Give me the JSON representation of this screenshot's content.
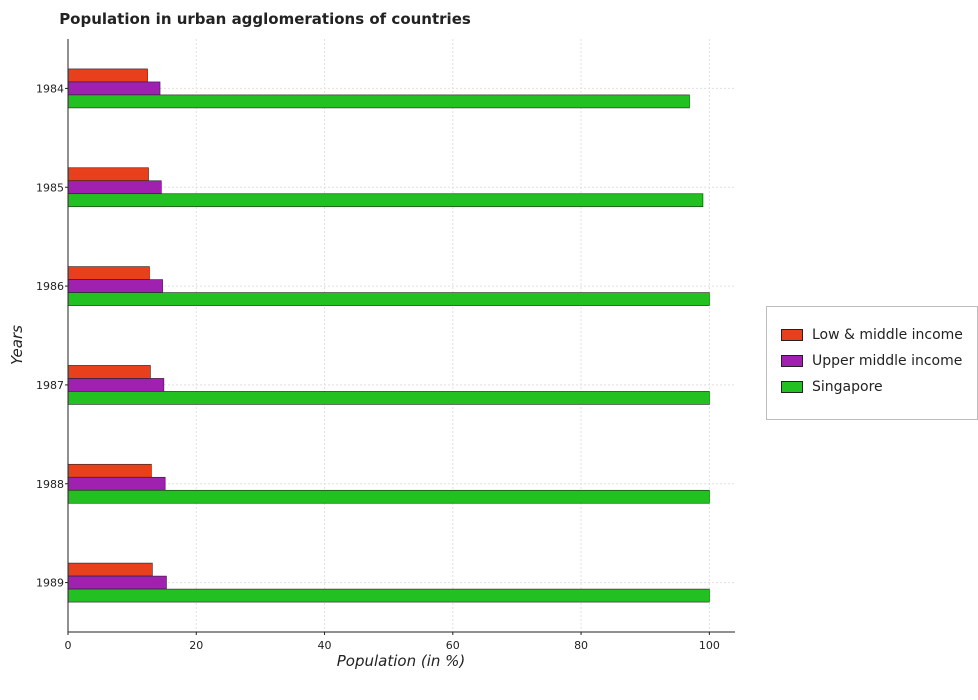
{
  "chart_data": {
    "type": "bar",
    "orientation": "horizontal",
    "title": "Population in urban agglomerations of countries",
    "xlabel": "Population (in %)",
    "ylabel": "Years",
    "categories": [
      "1984",
      "1985",
      "1986",
      "1987",
      "1988",
      "1989"
    ],
    "xlim": [
      0,
      104
    ],
    "xticks": [
      0,
      20,
      40,
      60,
      80,
      100
    ],
    "grid": true,
    "legend_position": "right",
    "series": [
      {
        "name": "Low & middle income",
        "color": "#e8401c",
        "values": [
          12.4,
          12.55,
          12.7,
          12.85,
          13.0,
          13.15
        ]
      },
      {
        "name": "Upper middle income",
        "color": "#a020b0",
        "values": [
          14.35,
          14.55,
          14.75,
          14.95,
          15.15,
          15.35
        ]
      },
      {
        "name": "Singapore",
        "color": "#22c020",
        "values": [
          96.9,
          99.0,
          100.0,
          100.0,
          100.0,
          100.0
        ]
      }
    ]
  }
}
